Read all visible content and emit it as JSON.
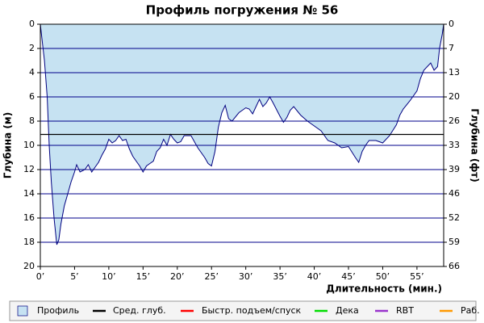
{
  "chart_data": {
    "type": "area",
    "title": "Профиль погружения № 56",
    "x_label": "Длительность (мин.)",
    "y_label": "Глубина (м)",
    "y2_label": "Глубина (фт)",
    "y_inverted": true,
    "xlim": [
      0,
      58.9
    ],
    "ylim": [
      0,
      20
    ],
    "y2lim": [
      0,
      65.62
    ],
    "xticks": [
      {
        "value": 0,
        "label": "0’"
      },
      {
        "value": 5,
        "label": "5’"
      },
      {
        "value": 10,
        "label": "10’"
      },
      {
        "value": 15,
        "label": "15’"
      },
      {
        "value": 20,
        "label": "20’"
      },
      {
        "value": 25,
        "label": "25’"
      },
      {
        "value": 30,
        "label": "30’"
      },
      {
        "value": 35,
        "label": "35’"
      },
      {
        "value": 40,
        "label": "40’"
      },
      {
        "value": 45,
        "label": "45’"
      },
      {
        "value": 50,
        "label": "50’"
      },
      {
        "value": 55,
        "label": "55’"
      }
    ],
    "yticks": [
      0,
      2,
      4,
      6,
      8,
      10,
      12,
      14,
      16,
      18,
      20
    ],
    "y2ticks": [
      0,
      {
        "value": 6.56,
        "label": "7"
      },
      {
        "value": 13.12,
        "label": "13"
      },
      {
        "value": 19.69,
        "label": "20"
      },
      {
        "value": 26.25,
        "label": "26"
      },
      {
        "value": 32.81,
        "label": "33"
      },
      {
        "value": 39.37,
        "label": "39"
      },
      {
        "value": 45.93,
        "label": "46"
      },
      {
        "value": 52.49,
        "label": "52"
      },
      {
        "value": 59.06,
        "label": "59"
      },
      {
        "value": 65.62,
        "label": "66"
      }
    ],
    "grid": true,
    "grid_color": "#00008b",
    "series": [
      {
        "name": "Профиль",
        "color": "#c6e2f2",
        "line_color": "#000080",
        "x": [
          0,
          0.3,
          0.6,
          1,
          1.3,
          1.6,
          2,
          2.4,
          2.7,
          3,
          3.5,
          4,
          4.5,
          5,
          5.3,
          5.8,
          6.5,
          7,
          7.5,
          8,
          8.5,
          9,
          9.5,
          10,
          10.5,
          11,
          11.5,
          12,
          12.5,
          13,
          13.5,
          14,
          14.5,
          15,
          15.5,
          16,
          16.5,
          17,
          17.5,
          18,
          18.5,
          19,
          19.5,
          20,
          20.5,
          21,
          22,
          23,
          24,
          24.5,
          25,
          25.5,
          26,
          26.5,
          27,
          27.5,
          28,
          29,
          30,
          30.5,
          31,
          31.5,
          32,
          32.5,
          33,
          33.5,
          34,
          35,
          35.5,
          36,
          36.5,
          37,
          38,
          39,
          40,
          41,
          42,
          43,
          44,
          45,
          46,
          46.5,
          47,
          47.5,
          48,
          49,
          50,
          51,
          52,
          52.5,
          53,
          54,
          55,
          55.5,
          56,
          57,
          57.5,
          58,
          58.3,
          58.7,
          58.9
        ],
        "values": [
          0,
          1.5,
          3,
          6,
          10,
          13,
          16,
          18.2,
          17.8,
          16.5,
          15,
          14,
          13,
          12.2,
          11.6,
          12.2,
          12,
          11.6,
          12.2,
          11.8,
          11.4,
          10.8,
          10.3,
          9.5,
          9.8,
          9.6,
          9.2,
          9.6,
          9.5,
          10.3,
          10.9,
          11.3,
          11.7,
          12.2,
          11.7,
          11.5,
          11.3,
          10.5,
          10.2,
          9.5,
          10,
          9.1,
          9.5,
          9.8,
          9.7,
          9.2,
          9.2,
          10.2,
          11,
          11.5,
          11.7,
          10.5,
          8.5,
          7.3,
          6.7,
          7.8,
          8,
          7.3,
          6.9,
          7,
          7.4,
          6.8,
          6.2,
          6.8,
          6.5,
          6,
          6.5,
          7.6,
          8.1,
          7.7,
          7.1,
          6.8,
          7.5,
          8,
          8.4,
          8.8,
          9.6,
          9.8,
          10.2,
          10.1,
          11,
          11.4,
          10.5,
          10,
          9.6,
          9.6,
          9.8,
          9.2,
          8.3,
          7.5,
          7,
          6.3,
          5.5,
          4.5,
          3.8,
          3.2,
          3.8,
          3.5,
          2,
          0.8,
          0
        ]
      }
    ],
    "avg_depth": {
      "name": "Сред. глуб.",
      "color": "#000000",
      "value": 9.1
    },
    "legend_entries": [
      {
        "name": "Быстр. подъем/спуск",
        "color": "#ff0000"
      },
      {
        "name": "Дека",
        "color": "#00dd00"
      },
      {
        "name": "RBT",
        "color": "#9933cc"
      },
      {
        "name": "Раб.",
        "color": "#ff9900"
      }
    ]
  }
}
